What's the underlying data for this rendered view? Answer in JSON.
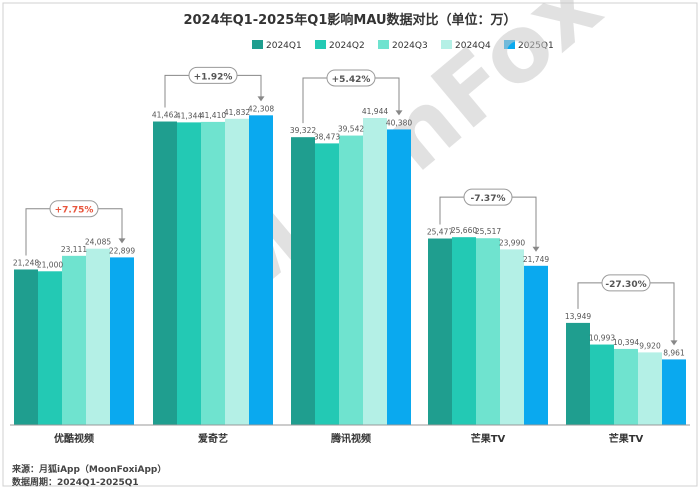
{
  "chart_data": {
    "type": "bar",
    "title": "2024年Q1-2025年Q1影响MAU数据对比（单位：万）",
    "categories": [
      "优酷视频",
      "爱奇艺",
      "腾讯视频",
      "芒果TV",
      "芒果TV"
    ],
    "category_labels": [
      "优酷视频",
      "爱奇艺",
      "腾讯视频",
      "芒果TV",
      "芒果TV"
    ],
    "series": [
      {
        "name": "2024Q1",
        "color": "#1f9e8f",
        "values": [
          21248,
          41462,
          39322,
          25477,
          13949
        ]
      },
      {
        "name": "2024Q2",
        "color": "#23c9b4",
        "values": [
          21000,
          41344,
          38473,
          25660,
          10993
        ]
      },
      {
        "name": "2024Q3",
        "color": "#6fe3cf",
        "values": [
          23111,
          41410,
          39542,
          25517,
          10394
        ]
      },
      {
        "name": "2024Q4",
        "color": "#b4f0e6",
        "values": [
          24085,
          41832,
          41944,
          23990,
          9920
        ]
      },
      {
        "name": "2025Q1",
        "color": "#0aa9ef",
        "values": [
          22899,
          42308,
          40380,
          21749,
          8961
        ]
      }
    ],
    "data_labels": [
      [
        "21,248",
        "21,000",
        "23,111",
        "24,085",
        "22,899"
      ],
      [
        "41,462",
        "41,344",
        "41,410",
        "41,832",
        "42,308"
      ],
      [
        "39,322",
        "38,473",
        "39,542",
        "41,944",
        "40,380"
      ],
      [
        "25,477",
        "25,660",
        "25,517",
        "23,990",
        "21,749"
      ],
      [
        "13,949",
        "10,993",
        "10,394",
        "9,920",
        "8,961"
      ]
    ],
    "changes": [
      "+7.75%",
      "+1.92%",
      "+5.42%",
      "-7.37%",
      "-27.30%"
    ],
    "change_colors": [
      "#e8553c",
      "#555555",
      "#555555",
      "#555555",
      "#555555"
    ],
    "ylim": [
      0,
      48500
    ],
    "legend_position": "top-right",
    "grid": false
  },
  "watermark": "MoonFox",
  "footer": {
    "source": "来源：月狐iApp（MoonFoxiApp）",
    "period": "数据周期：2024Q1-2025Q1"
  }
}
